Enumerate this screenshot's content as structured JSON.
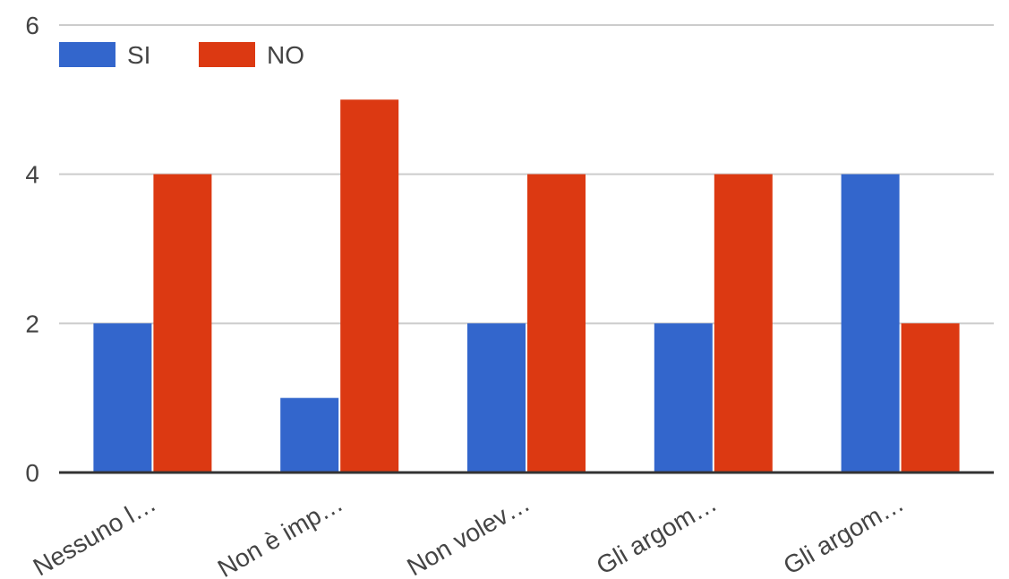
{
  "chart_data": {
    "type": "bar",
    "categories": [
      "Nessuno l…",
      "Non è imp…",
      "Non volev…",
      "Gli argom…",
      "Gli argom…"
    ],
    "series": [
      {
        "name": "SI",
        "values": [
          2,
          1,
          2,
          2,
          4
        ],
        "color": "#3366cc"
      },
      {
        "name": "NO",
        "values": [
          4,
          5,
          4,
          4,
          2
        ],
        "color": "#dc3912"
      }
    ],
    "title": "",
    "xlabel": "",
    "ylabel": "",
    "ylim": [
      0,
      6
    ],
    "yticks": [
      0,
      2,
      4,
      6
    ],
    "grid": true,
    "legend_position": "top-left"
  }
}
